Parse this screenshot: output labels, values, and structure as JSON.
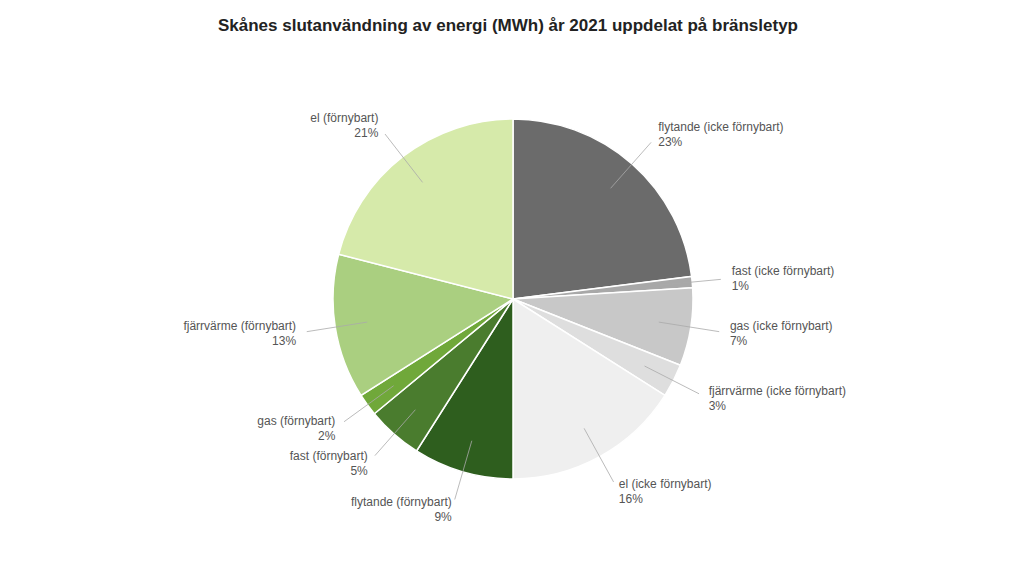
{
  "chart_data": {
    "type": "pie",
    "title": "Skånes slutanvändning av energi (MWh) år 2021 uppdelat på bränsletyp",
    "categories": [
      "flytande (icke förnybart)",
      "fast (icke förnybart)",
      "gas (icke förnybart)",
      "fjärrvärme (icke förnybart)",
      "el (icke förnybart)",
      "flytande (förnybart)",
      "fast (förnybart)",
      "gas (förnybart)",
      "fjärrvärme (förnybart)",
      "el (förnybart)"
    ],
    "values": [
      23,
      1,
      7,
      3,
      16,
      9,
      5,
      2,
      13,
      21
    ],
    "value_labels": [
      "23%",
      "1%",
      "7%",
      "3%",
      "16%",
      "9%",
      "5%",
      "2%",
      "13%",
      "21%"
    ],
    "data_labels": true,
    "colors": [
      "#6b6b6b",
      "#a8a8a8",
      "#c8c8c8",
      "#dedede",
      "#efefef",
      "#2e5e1e",
      "#4a7c2e",
      "#70a83a",
      "#aacf80",
      "#d6eaaa"
    ]
  }
}
